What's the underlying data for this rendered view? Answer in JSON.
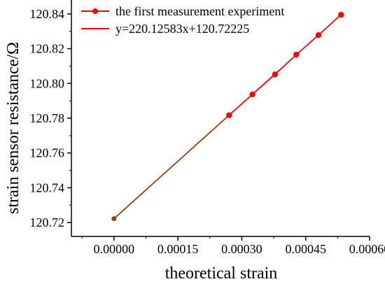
{
  "chart_data": {
    "type": "line",
    "xlabel": "theoretical strain",
    "ylabel": "strain sensor resistance/Ω",
    "xlim": [
      -0.0001,
      0.0006
    ],
    "ylim": [
      120.712,
      120.848
    ],
    "x_ticks": [
      0.0,
      0.00015,
      0.0003,
      0.00045,
      0.0006
    ],
    "x_tick_labels": [
      "0.00000",
      "0.00015",
      "0.00030",
      "0.00045",
      "0.00060"
    ],
    "y_ticks": [
      120.72,
      120.74,
      120.76,
      120.78,
      120.8,
      120.82,
      120.84
    ],
    "y_tick_labels": [
      "120.72",
      "120.74",
      "120.76",
      "120.78",
      "120.80",
      "120.82",
      "120.84"
    ],
    "legend_position": "top-left",
    "grid": false,
    "series": [
      {
        "name": "the first measurement experiment",
        "kind": "line-marker",
        "color": "#ff0000",
        "x": [
          0.0,
          0.00027,
          0.000325,
          0.000378,
          0.000428,
          0.00048,
          0.000533
        ],
        "y": [
          120.7222,
          120.7817,
          120.7937,
          120.8052,
          120.8166,
          120.8278,
          120.8395
        ]
      },
      {
        "name": "y=220.12583x+120.72225",
        "kind": "fit-line",
        "color": "#ff0000",
        "slope": 220.12583,
        "intercept": 120.72225,
        "x_range": [
          0.0,
          0.000533
        ]
      }
    ],
    "overlap_color": "#8b4513"
  }
}
